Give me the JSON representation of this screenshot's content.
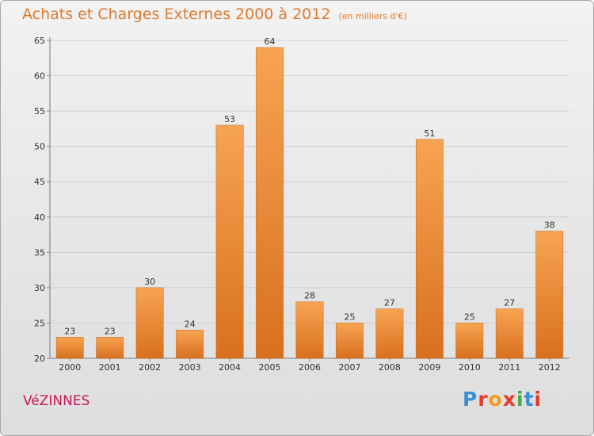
{
  "header": {
    "title": "Achats et Charges Externes 2000 à 2012",
    "subtitle": "(en milliers d'€)"
  },
  "footer": {
    "place": "VéZINNES",
    "logo_text": "Proxiti",
    "logo_colors": [
      "#3b8fd4",
      "#e6392b",
      "#f29a1f",
      "#e6392b",
      "#49a84a",
      "#3b8fd4",
      "#e6392b"
    ]
  },
  "chart_data": {
    "type": "bar",
    "categories": [
      "2000",
      "2001",
      "2002",
      "2003",
      "2004",
      "2005",
      "2006",
      "2007",
      "2008",
      "2009",
      "2010",
      "2011",
      "2012"
    ],
    "values": [
      23,
      23,
      30,
      24,
      53,
      64,
      28,
      25,
      27,
      51,
      25,
      27,
      38
    ],
    "ylim": [
      20,
      65
    ],
    "yticks": [
      20,
      25,
      30,
      35,
      40,
      45,
      50,
      55,
      60,
      65
    ],
    "grid": true,
    "bar_color_top": "#f7a452",
    "bar_color_bottom": "#d8701f"
  }
}
